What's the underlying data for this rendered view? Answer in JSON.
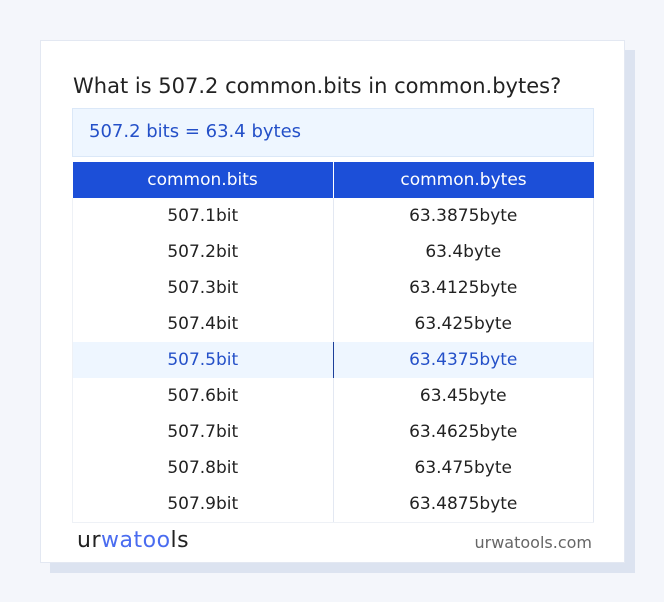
{
  "title": "What is 507.2 common.bits in common.bytes?",
  "result": "507.2 bits = 63.4 bytes",
  "table": {
    "headers": [
      "common.bits",
      "common.bytes"
    ],
    "rows": [
      [
        "507.1bit",
        "63.3875byte"
      ],
      [
        "507.2bit",
        "63.4byte"
      ],
      [
        "507.3bit",
        "63.4125byte"
      ],
      [
        "507.4bit",
        "63.425byte"
      ],
      [
        "507.5bit",
        "63.4375byte"
      ],
      [
        "507.6bit",
        "63.45byte"
      ],
      [
        "507.7bit",
        "63.4625byte"
      ],
      [
        "507.8bit",
        "63.475byte"
      ],
      [
        "507.9bit",
        "63.4875byte"
      ]
    ],
    "highlighted_row": 4
  },
  "footer": {
    "logo": "urwatools",
    "logo_parts": [
      "ur",
      "wat",
      "oo",
      "ls"
    ],
    "site": "urwatools.com"
  },
  "colors": {
    "accent": "#1c4fd8",
    "highlight_bg": "#eef6ff",
    "highlight_text": "#2450c8"
  }
}
